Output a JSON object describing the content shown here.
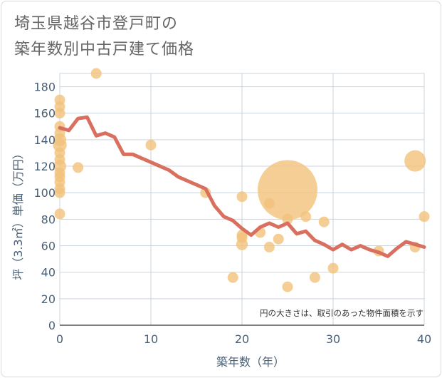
{
  "title": "埼玉県越谷市登戸町の\n築年数別中古戸建て価格",
  "chart_data": {
    "type": "scatter",
    "title": "埼玉県越谷市登戸町の 築年数別中古戸建て価格",
    "xlabel": "築年数（年）",
    "ylabel": "坪（3.3㎡）単価（万円）",
    "xlim": [
      0,
      40
    ],
    "ylim": [
      0,
      190
    ],
    "xticks": [
      0,
      10,
      20,
      30,
      40
    ],
    "yticks": [
      0,
      20,
      40,
      60,
      80,
      100,
      120,
      140,
      160,
      180
    ],
    "grid": true,
    "note": "円の大きさは、取引のあった物件面積を示す",
    "colors": {
      "bubble": "#f3c27a",
      "line": "#d9705f",
      "grid": "#c9d4de"
    },
    "bubbles": [
      {
        "x": 0,
        "y": 170,
        "size": 1.0
      },
      {
        "x": 0,
        "y": 165,
        "size": 1.0
      },
      {
        "x": 0,
        "y": 160,
        "size": 1.0
      },
      {
        "x": 0,
        "y": 150,
        "size": 1.0
      },
      {
        "x": 0,
        "y": 145,
        "size": 1.0
      },
      {
        "x": 0,
        "y": 140,
        "size": 1.2
      },
      {
        "x": 0,
        "y": 136,
        "size": 1.3
      },
      {
        "x": 0,
        "y": 130,
        "size": 1.0
      },
      {
        "x": 0,
        "y": 125,
        "size": 1.0
      },
      {
        "x": 0,
        "y": 120,
        "size": 1.2
      },
      {
        "x": 0,
        "y": 115,
        "size": 1.0
      },
      {
        "x": 0,
        "y": 112,
        "size": 1.0
      },
      {
        "x": 0,
        "y": 108,
        "size": 1.0
      },
      {
        "x": 0,
        "y": 103,
        "size": 1.0
      },
      {
        "x": 0,
        "y": 100,
        "size": 1.0
      },
      {
        "x": 0,
        "y": 84,
        "size": 1.0
      },
      {
        "x": 2,
        "y": 119,
        "size": 1.0
      },
      {
        "x": 4,
        "y": 190,
        "size": 1.0
      },
      {
        "x": 10,
        "y": 136,
        "size": 1.0
      },
      {
        "x": 16,
        "y": 100,
        "size": 1.0
      },
      {
        "x": 19,
        "y": 36,
        "size": 1.0
      },
      {
        "x": 20,
        "y": 97,
        "size": 1.0
      },
      {
        "x": 20,
        "y": 68,
        "size": 1.0
      },
      {
        "x": 20,
        "y": 66,
        "size": 1.0
      },
      {
        "x": 20,
        "y": 61,
        "size": 1.1
      },
      {
        "x": 22,
        "y": 70,
        "size": 1.0
      },
      {
        "x": 23,
        "y": 92,
        "size": 1.0
      },
      {
        "x": 23,
        "y": 59,
        "size": 1.0
      },
      {
        "x": 24,
        "y": 65,
        "size": 1.0
      },
      {
        "x": 25,
        "y": 102,
        "size": 5.6
      },
      {
        "x": 25,
        "y": 80,
        "size": 1.0
      },
      {
        "x": 25,
        "y": 29,
        "size": 1.0
      },
      {
        "x": 27,
        "y": 82,
        "size": 1.0
      },
      {
        "x": 28,
        "y": 36,
        "size": 1.0
      },
      {
        "x": 29,
        "y": 78,
        "size": 1.0
      },
      {
        "x": 30,
        "y": 43,
        "size": 1.0
      },
      {
        "x": 35,
        "y": 56,
        "size": 1.0
      },
      {
        "x": 39,
        "y": 124,
        "size": 2.0
      },
      {
        "x": 39,
        "y": 59,
        "size": 1.0
      },
      {
        "x": 40,
        "y": 82,
        "size": 1.0
      }
    ],
    "trend": {
      "x": [
        0,
        1,
        2,
        3,
        4,
        5,
        6,
        7,
        8,
        9,
        10,
        11,
        12,
        13,
        14,
        15,
        16,
        17,
        18,
        19,
        20,
        21,
        22,
        23,
        24,
        25,
        26,
        27,
        28,
        29,
        30,
        31,
        32,
        33,
        34,
        35,
        36,
        37,
        38,
        39,
        40
      ],
      "y": [
        149,
        147,
        156,
        157,
        143,
        145,
        142,
        129,
        129,
        126,
        123,
        120,
        117,
        112,
        109,
        106,
        103,
        90,
        82,
        79,
        73,
        68,
        74,
        77,
        74,
        77,
        69,
        71,
        64,
        61,
        57,
        61,
        57,
        60,
        57,
        55,
        52,
        58,
        63,
        61,
        59
      ]
    }
  }
}
